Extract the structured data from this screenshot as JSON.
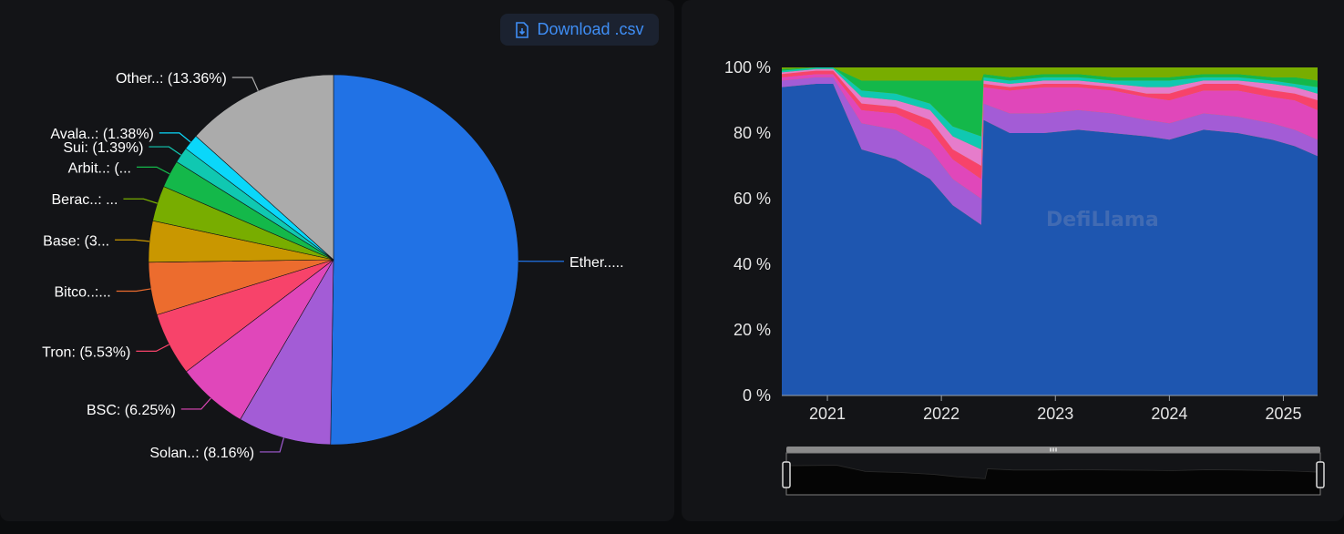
{
  "download_label": "Download .csv",
  "watermark": "DefiLlama",
  "chart_data": [
    {
      "type": "pie",
      "slices": [
        {
          "label": "Ether.....",
          "value": 50.28,
          "color": "#2172e5"
        },
        {
          "label": "Solan..: (8.16%)",
          "value": 8.16,
          "color": "#a35cd6"
        },
        {
          "label": "BSC: (6.25%)",
          "value": 6.25,
          "color": "#e047ba"
        },
        {
          "label": "Tron: (5.53%)",
          "value": 5.53,
          "color": "#f7436a"
        },
        {
          "label": "Bitco..:...",
          "value": 4.6,
          "color": "#ec6c2e"
        },
        {
          "label": "Base: (3...",
          "value": 3.6,
          "color": "#c99700"
        },
        {
          "label": "Berac..: ...",
          "value": 3.1,
          "color": "#78ad00"
        },
        {
          "label": "Arbit..: (...",
          "value": 2.4,
          "color": "#14b84a"
        },
        {
          "label": "Sui: (1.39%)",
          "value": 1.39,
          "color": "#10c8b1"
        },
        {
          "label": "Avala..: (1.38%)",
          "value": 1.38,
          "color": "#0ad7fa"
        },
        {
          "label": "Other..: (13.36%)",
          "value": 13.36,
          "color": "#ababab"
        }
      ]
    },
    {
      "type": "area",
      "stacked_percent": true,
      "ylim": [
        0,
        100
      ],
      "yticks": [
        "0 %",
        "20 %",
        "40 %",
        "60 %",
        "80 %",
        "100 %"
      ],
      "xticks": [
        "2021",
        "2022",
        "2023",
        "2024",
        "2025"
      ],
      "x": [
        2020.6,
        2020.9,
        2021.05,
        2021.3,
        2021.6,
        2021.9,
        2022.1,
        2022.35,
        2022.37,
        2022.6,
        2022.9,
        2023.2,
        2023.5,
        2023.8,
        2024.0,
        2024.3,
        2024.6,
        2024.9,
        2025.1,
        2025.3
      ],
      "series": [
        {
          "values": [
            94,
            95,
            95,
            75,
            72,
            66,
            58,
            52,
            84,
            80,
            80,
            81,
            80,
            79,
            78,
            81,
            80,
            78,
            76,
            73
          ],
          "color": "#1e56b0"
        },
        {
          "values": [
            2,
            2,
            2,
            8,
            9,
            9,
            8,
            8,
            5,
            6,
            6,
            6,
            6,
            5,
            5,
            5,
            5,
            5,
            5,
            5
          ],
          "color": "#a35cd6"
        },
        {
          "values": [
            1,
            1,
            1,
            4,
            5,
            6,
            6,
            6,
            5,
            7,
            8,
            7,
            7,
            7,
            7,
            7,
            8,
            8,
            9,
            9
          ],
          "color": "#e047ba"
        },
        {
          "values": [
            1,
            1,
            1,
            2,
            2,
            3,
            3,
            4,
            1,
            1,
            1,
            1,
            1,
            1,
            2,
            2,
            2,
            2,
            2,
            3
          ],
          "color": "#f7436a"
        },
        {
          "values": [
            0.5,
            0.5,
            0.5,
            2,
            2,
            3,
            4,
            5,
            1,
            1,
            1,
            1,
            1,
            2,
            2,
            1,
            1,
            2,
            2,
            2
          ],
          "color": "#e67ccb"
        },
        {
          "values": [
            0.5,
            0.5,
            0.5,
            2,
            2,
            2,
            3,
            4,
            1,
            1,
            1,
            1,
            1,
            2,
            2,
            1,
            1,
            1,
            1,
            2
          ],
          "color": "#10c8b1"
        },
        {
          "values": [
            0.5,
            0.5,
            0.5,
            3,
            4,
            7,
            14,
            17,
            1,
            1,
            1,
            1,
            1,
            1,
            1,
            1,
            1,
            1,
            2,
            2
          ],
          "color": "#14b84a"
        },
        {
          "values": [
            0.5,
            0.5,
            0.5,
            4,
            4,
            4,
            4,
            4,
            2,
            3,
            2,
            2,
            3,
            3,
            3,
            2,
            2,
            3,
            3,
            4
          ],
          "color": "#78ad00"
        },
        {
          "values": [
            0,
            0,
            0,
            0,
            0,
            0,
            0,
            0,
            0,
            0,
            0,
            0,
            0,
            0,
            0,
            0,
            0,
            0,
            0,
            0
          ],
          "color": "#c99700"
        }
      ]
    }
  ]
}
